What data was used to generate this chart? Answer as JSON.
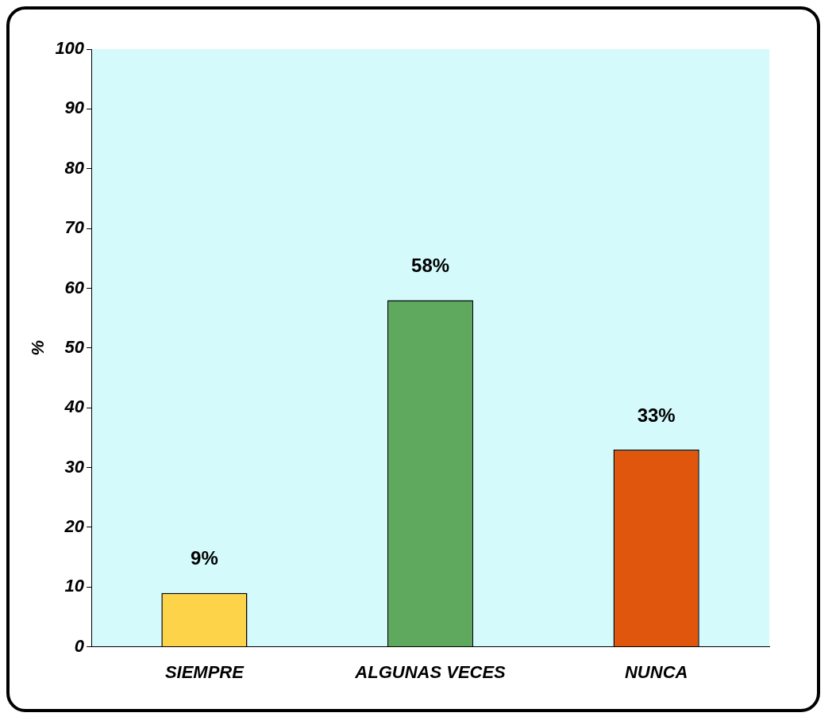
{
  "chart_data": {
    "type": "bar",
    "ylabel": "%",
    "categories": [
      "SIEMPRE",
      "ALGUNAS VECES",
      "NUNCA"
    ],
    "values": [
      9,
      58,
      33
    ],
    "colors": [
      "#fdd34a",
      "#5ea95e",
      "#e0560c"
    ],
    "value_labels": [
      "9%",
      "58%",
      "33%"
    ],
    "ylim": [
      0,
      100
    ],
    "yticks": [
      0,
      10,
      20,
      30,
      40,
      50,
      60,
      70,
      80,
      90,
      100
    ],
    "grid": false,
    "legend": false
  }
}
